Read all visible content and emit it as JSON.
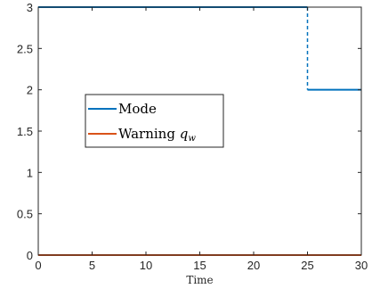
{
  "chart_data": {
    "type": "line",
    "title": "",
    "xlabel": "Time",
    "ylabel": "",
    "xlim": [
      0,
      30
    ],
    "ylim": [
      0,
      3
    ],
    "x_ticks": [
      0,
      5,
      10,
      15,
      20,
      25,
      30
    ],
    "y_ticks": [
      0,
      0.5,
      1,
      1.5,
      2,
      2.5,
      3
    ],
    "x_tick_labels": [
      "0",
      "5",
      "10",
      "15",
      "20",
      "25",
      "30"
    ],
    "y_tick_labels": [
      "0",
      "0.5",
      "1",
      "1.5",
      "2",
      "2.5",
      "3"
    ],
    "grid": false,
    "legend_position": "center-left",
    "series": [
      {
        "name": "Mode",
        "color": "#0072BD",
        "points": [
          [
            0,
            3
          ],
          [
            25,
            3
          ],
          [
            25,
            2
          ],
          [
            30,
            2
          ]
        ],
        "dashed_vertical_transition": true
      },
      {
        "name": "Warning",
        "name_math": "q",
        "name_subscript": "w",
        "color": "#D95319",
        "points": [
          [
            0,
            0
          ],
          [
            30,
            0
          ]
        ]
      }
    ]
  }
}
